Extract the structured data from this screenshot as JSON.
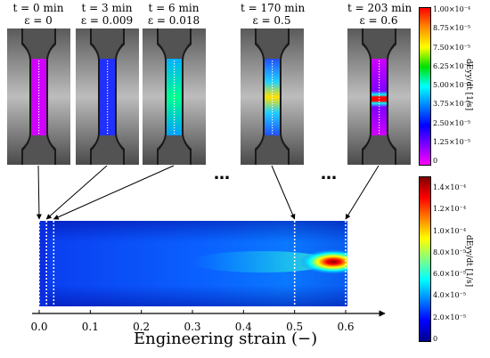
{
  "frames": [
    {
      "t": "t = 0 min",
      "eps": "ε = 0",
      "colormap": "magenta",
      "strain": 0.0
    },
    {
      "t": "t = 3 min",
      "eps": "ε = 0.009",
      "colormap": "blue",
      "strain": 0.009
    },
    {
      "t": "t = 6 min",
      "eps": "ε = 0.018",
      "colormap": "cyan-green",
      "strain": 0.018
    },
    {
      "t": "t = 170 min",
      "eps": "ε = 0.5",
      "colormap": "yellow-green",
      "strain": 0.5
    },
    {
      "t": "t = 203 min",
      "eps": "ε = 0.6",
      "colormap": "red-localized",
      "strain": 0.6
    }
  ],
  "ellipsis": "…",
  "top_colorbar": {
    "title": "dEyy/dt [1/s]",
    "ticks": [
      "1.00×10⁻⁴",
      "8.75×10⁻⁵",
      "7.50×10⁻⁵",
      "6.25×10⁻⁵",
      "5.00×10⁻⁵",
      "3.75×10⁻⁵",
      "2.50×10⁻⁵",
      "1.25×10⁻⁵",
      "0"
    ],
    "colors": [
      "#ff0000",
      "#ff8c00",
      "#ffff00",
      "#00e000",
      "#00ffff",
      "#0080ff",
      "#0000ff",
      "#8000ff",
      "#ff00ff"
    ]
  },
  "bottom_colorbar": {
    "title": "dEyy/dt [1/s]",
    "ticks": [
      "1.4×10⁻⁴",
      "1.2×10⁻⁴",
      "1.0×10⁻⁴",
      "8.0×10⁻⁵",
      "6.0×10⁻⁵",
      "4.0×10⁻⁵",
      "2.0×10⁻⁵",
      "0"
    ],
    "colors": [
      "#800000",
      "#ff0000",
      "#ff8000",
      "#ffff00",
      "#80ff80",
      "#00ffff",
      "#0080ff",
      "#0000ff",
      "#00008f"
    ]
  },
  "xaxis": {
    "ticks": [
      "0.0",
      "0.1",
      "0.2",
      "0.3",
      "0.4",
      "0.5",
      "0.6"
    ],
    "title": "Engineering strain (−)",
    "range": [
      0,
      0.6
    ]
  },
  "markers": [
    0.0,
    0.009,
    0.018,
    0.5,
    0.6
  ]
}
